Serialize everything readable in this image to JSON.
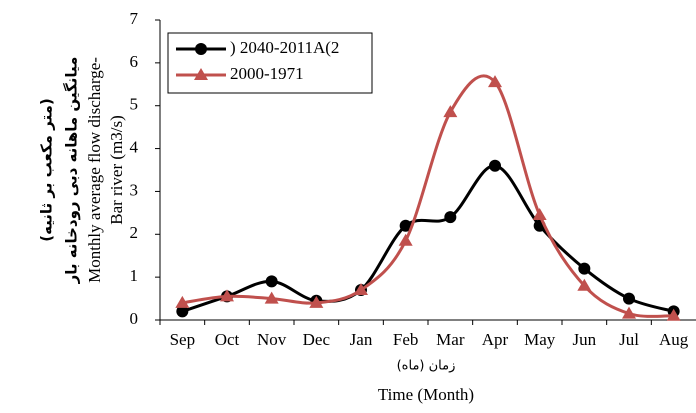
{
  "chart_data": {
    "type": "line",
    "categories": [
      "Sep",
      "Oct",
      "Nov",
      "Dec",
      "Jan",
      "Feb",
      "Mar",
      "Apr",
      "May",
      "Jun",
      "Jul",
      "Aug"
    ],
    "series": [
      {
        "name": ") 2040-2011A(2",
        "color": "#000000",
        "marker": "circle",
        "values": [
          0.2,
          0.55,
          0.9,
          0.45,
          0.7,
          2.2,
          2.4,
          3.6,
          2.2,
          1.2,
          0.5,
          0.2
        ]
      },
      {
        "name": "2000-1971",
        "color": "#c0504d",
        "marker": "triangle",
        "values": [
          0.4,
          0.55,
          0.5,
          0.4,
          0.7,
          1.85,
          4.85,
          5.55,
          2.45,
          0.8,
          0.15,
          0.1
        ]
      }
    ],
    "ylim": [
      0,
      7
    ],
    "yticks": [
      0,
      1,
      2,
      3,
      4,
      5,
      6,
      7
    ],
    "xlabel": [
      "زمان (ماه)",
      "Time (Month)"
    ],
    "ylabel": [
      "Monthly average flow discharge-",
      "Bar river (m3/s)"
    ],
    "ylabel_fa": [
      "میانگین ماهانه دبی رودخانه بار",
      "(متر مکعب بر ثانیه)"
    ],
    "smooth": true,
    "legend": "top-left"
  }
}
